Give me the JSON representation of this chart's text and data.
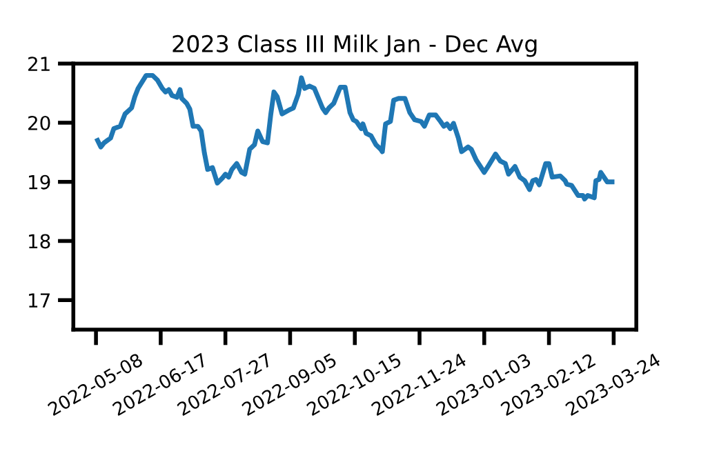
{
  "chart_data": {
    "type": "line",
    "title": "2023 Class III Milk Jan - Dec Avg",
    "x": [
      "2022-05-09",
      "2022-05-11",
      "2022-05-13",
      "2022-05-17",
      "2022-05-19",
      "2022-05-23",
      "2022-05-26",
      "2022-05-30",
      "2022-06-01",
      "2022-06-03",
      "2022-06-08",
      "2022-06-12",
      "2022-06-15",
      "2022-06-18",
      "2022-06-20",
      "2022-06-22",
      "2022-06-24",
      "2022-06-27",
      "2022-06-29",
      "2022-06-30",
      "2022-07-03",
      "2022-07-05",
      "2022-07-07",
      "2022-07-10",
      "2022-07-12",
      "2022-07-14",
      "2022-07-16",
      "2022-07-19",
      "2022-07-22",
      "2022-07-25",
      "2022-07-27",
      "2022-07-29",
      "2022-07-31",
      "2022-08-03",
      "2022-08-06",
      "2022-08-08",
      "2022-08-11",
      "2022-08-14",
      "2022-08-16",
      "2022-08-19",
      "2022-08-22",
      "2022-08-24",
      "2022-08-26",
      "2022-08-28",
      "2022-08-31",
      "2022-09-04",
      "2022-09-07",
      "2022-09-10",
      "2022-09-12",
      "2022-09-14",
      "2022-09-17",
      "2022-09-20",
      "2022-09-25",
      "2022-09-27",
      "2022-09-29",
      "2022-10-02",
      "2022-10-06",
      "2022-10-09",
      "2022-10-12",
      "2022-10-14",
      "2022-10-16",
      "2022-10-19",
      "2022-10-20",
      "2022-10-22",
      "2022-10-25",
      "2022-10-28",
      "2022-10-31",
      "2022-11-01",
      "2022-11-03",
      "2022-11-06",
      "2022-11-08",
      "2022-11-11",
      "2022-11-15",
      "2022-11-18",
      "2022-11-21",
      "2022-11-25",
      "2022-11-27",
      "2022-11-30",
      "2022-12-04",
      "2022-12-07",
      "2022-12-09",
      "2022-12-11",
      "2022-12-13",
      "2022-12-15",
      "2022-12-18",
      "2022-12-20",
      "2022-12-24",
      "2022-12-26",
      "2022-12-29",
      "2023-01-03",
      "2023-01-06",
      "2023-01-10",
      "2023-01-13",
      "2023-01-16",
      "2023-01-18",
      "2023-01-22",
      "2023-01-25",
      "2023-01-28",
      "2023-01-31",
      "2023-02-02",
      "2023-02-04",
      "2023-02-06",
      "2023-02-10",
      "2023-02-12",
      "2023-02-14",
      "2023-02-19",
      "2023-02-22",
      "2023-02-23",
      "2023-02-26",
      "2023-03-02",
      "2023-03-05",
      "2023-03-06",
      "2023-03-08",
      "2023-03-12",
      "2023-03-13",
      "2023-03-15",
      "2023-03-16",
      "2023-03-20",
      "2023-03-23"
    ],
    "series": [
      {
        "color": "#1f77b4",
        "values": [
          19.7,
          19.59,
          19.66,
          19.74,
          19.9,
          19.94,
          20.15,
          20.25,
          20.44,
          20.58,
          20.8,
          20.8,
          20.72,
          20.58,
          20.52,
          20.56,
          20.46,
          20.43,
          20.56,
          20.41,
          20.33,
          20.23,
          19.94,
          19.94,
          19.86,
          19.49,
          19.21,
          19.24,
          18.98,
          19.06,
          19.13,
          19.08,
          19.21,
          19.31,
          19.16,
          19.13,
          19.55,
          19.63,
          19.86,
          19.68,
          19.66,
          20.13,
          20.52,
          20.44,
          20.15,
          20.21,
          20.25,
          20.48,
          20.76,
          20.58,
          20.62,
          20.58,
          20.25,
          20.17,
          20.25,
          20.33,
          20.6,
          20.6,
          20.17,
          20.05,
          20.02,
          19.9,
          19.98,
          19.82,
          19.78,
          19.63,
          19.55,
          19.51,
          19.98,
          20.02,
          20.38,
          20.41,
          20.41,
          20.17,
          20.05,
          20.02,
          19.94,
          20.13,
          20.13,
          20.02,
          19.94,
          19.98,
          19.9,
          19.99,
          19.74,
          19.51,
          19.59,
          19.55,
          19.37,
          19.16,
          19.29,
          19.47,
          19.35,
          19.31,
          19.13,
          19.26,
          19.08,
          19.02,
          18.87,
          19.02,
          19.04,
          18.95,
          19.31,
          19.31,
          19.08,
          19.1,
          19.02,
          18.96,
          18.94,
          18.77,
          18.77,
          18.71,
          18.77,
          18.73,
          19.02,
          19.04,
          19.16,
          19.0,
          19.0
        ]
      }
    ],
    "xlim": [
      "2022-04-24",
      "2023-04-07"
    ],
    "xticks": [
      "2022-05-08",
      "2022-06-17",
      "2022-07-27",
      "2022-09-05",
      "2022-10-15",
      "2022-11-24",
      "2023-01-03",
      "2023-02-12",
      "2023-03-24"
    ],
    "ylim": [
      16.5,
      21
    ],
    "yticks": [
      17,
      18,
      19,
      20,
      21
    ],
    "grid": false,
    "legend": false,
    "line_style": "solid",
    "marker": "none"
  }
}
